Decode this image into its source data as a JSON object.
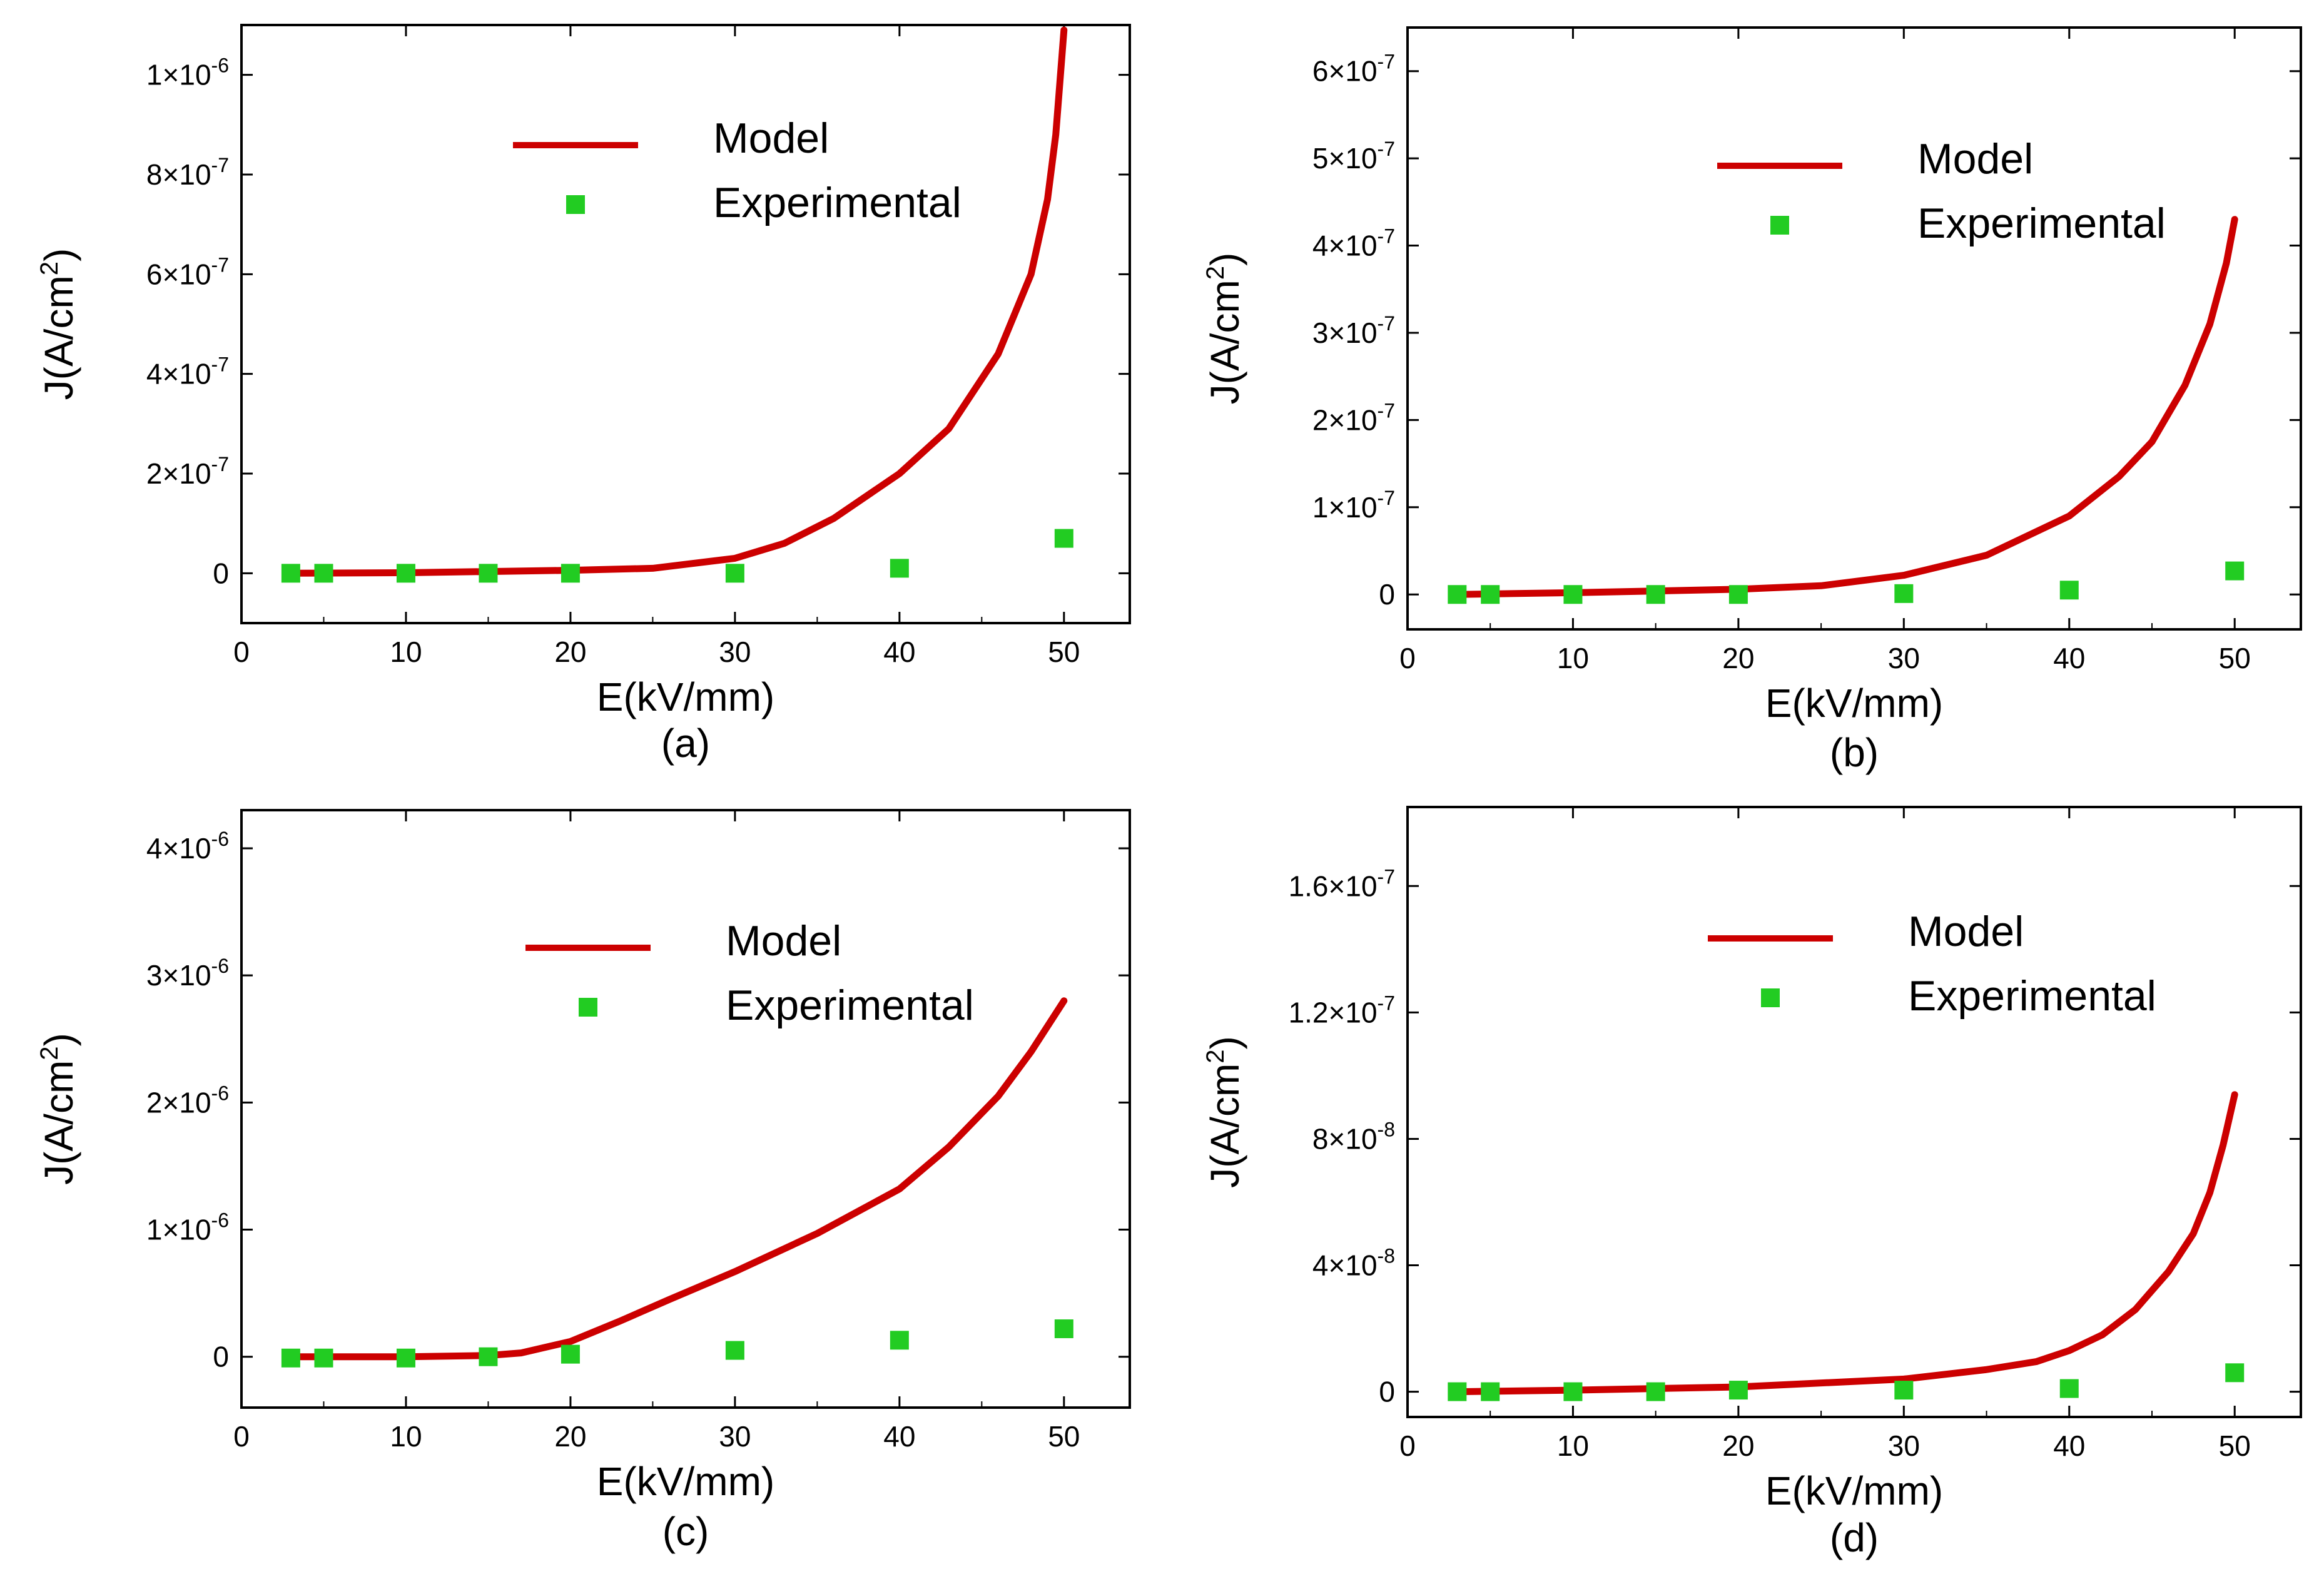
{
  "figure": {
    "series_names": [
      "Model",
      "Experimental"
    ],
    "colors": {
      "model": "#cc0000",
      "experimental": "#22cc22",
      "axis": "#000000"
    }
  },
  "chart_data": [
    {
      "id": "a",
      "type": "line",
      "caption": "(a)",
      "xlabel": "E(kV/mm)",
      "ylabel": "J(A/cm2)",
      "ylabel_parts": [
        "J(A/cm",
        "2",
        ")"
      ],
      "xlim": [
        0,
        54
      ],
      "ylim": [
        -1e-07,
        1.1e-06
      ],
      "x_ticks": [
        0,
        10,
        20,
        30,
        40,
        50
      ],
      "y_ticks": [
        {
          "value": 0,
          "base": "0",
          "exp": ""
        },
        {
          "value": 2e-07,
          "base": "2×10",
          "exp": "-7"
        },
        {
          "value": 4e-07,
          "base": "4×10",
          "exp": "-7"
        },
        {
          "value": 6e-07,
          "base": "6×10",
          "exp": "-7"
        },
        {
          "value": 8e-07,
          "base": "8×10",
          "exp": "-7"
        },
        {
          "value": 1e-06,
          "base": "1×10",
          "exp": "-6"
        }
      ],
      "legend": {
        "position": "top-center",
        "model_label": "Model",
        "experimental_label": "Experimental"
      },
      "series": [
        {
          "name": "Model",
          "kind": "line",
          "x": [
            3,
            10,
            20,
            25,
            30,
            33,
            36,
            40,
            43,
            46,
            48,
            49,
            49.5,
            50
          ],
          "y": [
            0,
            1e-09,
            6e-09,
            1e-08,
            3e-08,
            6e-08,
            1.1e-07,
            2e-07,
            2.9e-07,
            4.4e-07,
            6e-07,
            7.5e-07,
            8.8e-07,
            1.09e-06
          ]
        },
        {
          "name": "Experimental",
          "kind": "scatter",
          "x": [
            3,
            5,
            10,
            15,
            20,
            30,
            40,
            50
          ],
          "y": [
            0,
            0,
            0,
            0,
            0,
            0,
            1e-08,
            7e-08
          ]
        }
      ]
    },
    {
      "id": "b",
      "type": "line",
      "caption": "(b)",
      "xlabel": "E(kV/mm)",
      "ylabel": "J(A/cm2)",
      "ylabel_parts": [
        "J(A/cm",
        "2",
        ")"
      ],
      "xlim": [
        0,
        54
      ],
      "ylim": [
        -4e-08,
        6.5e-07
      ],
      "x_ticks": [
        0,
        10,
        20,
        30,
        40,
        50
      ],
      "y_ticks": [
        {
          "value": 0,
          "base": "0",
          "exp": ""
        },
        {
          "value": 1e-07,
          "base": "1×10",
          "exp": "-7"
        },
        {
          "value": 2e-07,
          "base": "2×10",
          "exp": "-7"
        },
        {
          "value": 3e-07,
          "base": "3×10",
          "exp": "-7"
        },
        {
          "value": 4e-07,
          "base": "4×10",
          "exp": "-7"
        },
        {
          "value": 5e-07,
          "base": "5×10",
          "exp": "-7"
        },
        {
          "value": 6e-07,
          "base": "6×10",
          "exp": "-7"
        }
      ],
      "legend": {
        "position": "top-center",
        "model_label": "Model",
        "experimental_label": "Experimental"
      },
      "series": [
        {
          "name": "Model",
          "kind": "line",
          "x": [
            3,
            10,
            20,
            25,
            30,
            35,
            40,
            43,
            45,
            47,
            48.5,
            49.5,
            50
          ],
          "y": [
            0,
            2e-09,
            6e-09,
            1e-08,
            2.2e-08,
            4.5e-08,
            9e-08,
            1.35e-07,
            1.75e-07,
            2.4e-07,
            3.1e-07,
            3.8e-07,
            4.3e-07
          ]
        },
        {
          "name": "Experimental",
          "kind": "scatter",
          "x": [
            3,
            5,
            10,
            15,
            20,
            30,
            40,
            50
          ],
          "y": [
            0,
            0,
            0,
            0,
            0,
            1e-09,
            5e-09,
            2.7e-08
          ]
        }
      ]
    },
    {
      "id": "c",
      "type": "line",
      "caption": "(c)",
      "xlabel": "E(kV/mm)",
      "ylabel": "J(A/cm2)",
      "ylabel_parts": [
        "J(A/cm",
        "2",
        ")"
      ],
      "xlim": [
        0,
        54
      ],
      "ylim": [
        -4e-07,
        4.3e-06
      ],
      "x_ticks": [
        0,
        10,
        20,
        30,
        40,
        50
      ],
      "y_ticks": [
        {
          "value": 0,
          "base": "0",
          "exp": ""
        },
        {
          "value": 1e-06,
          "base": "1×10",
          "exp": "-6"
        },
        {
          "value": 2e-06,
          "base": "2×10",
          "exp": "-6"
        },
        {
          "value": 3e-06,
          "base": "3×10",
          "exp": "-6"
        },
        {
          "value": 4e-06,
          "base": "4×10",
          "exp": "-6"
        }
      ],
      "legend": {
        "position": "top-center",
        "model_label": "Model",
        "experimental_label": "Experimental"
      },
      "series": [
        {
          "name": "Model",
          "kind": "line",
          "x": [
            3,
            10,
            15,
            17,
            20,
            23,
            26,
            30,
            35,
            40,
            43,
            46,
            48,
            50
          ],
          "y": [
            0,
            0,
            1e-08,
            3e-08,
            1.2e-07,
            2.8e-07,
            4.5e-07,
            6.7e-07,
            9.7e-07,
            1.32e-06,
            1.65e-06,
            2.05e-06,
            2.4e-06,
            2.8e-06
          ]
        },
        {
          "name": "Experimental",
          "kind": "scatter",
          "x": [
            3,
            5,
            10,
            15,
            20,
            30,
            40,
            50
          ],
          "y": [
            -1e-08,
            -1e-08,
            -1e-08,
            0,
            2e-08,
            5e-08,
            1.3e-07,
            2.2e-07
          ]
        }
      ]
    },
    {
      "id": "d",
      "type": "line",
      "caption": "(d)",
      "xlabel": "E(kV/mm)",
      "ylabel": "J(A/cm2)",
      "ylabel_parts": [
        "J(A/cm",
        "2",
        ")"
      ],
      "xlim": [
        0,
        54
      ],
      "ylim": [
        -8e-09,
        1.85e-07
      ],
      "x_ticks": [
        0,
        10,
        20,
        30,
        40,
        50
      ],
      "y_ticks": [
        {
          "value": 0,
          "base": "0",
          "exp": ""
        },
        {
          "value": 4e-08,
          "base": "4×10",
          "exp": "-8"
        },
        {
          "value": 8e-08,
          "base": "8×10",
          "exp": "-8"
        },
        {
          "value": 1.2e-07,
          "base": "1.2×10",
          "exp": "-7"
        },
        {
          "value": 1.6e-07,
          "base": "1.6×10",
          "exp": "-7"
        }
      ],
      "legend": {
        "position": "top-center",
        "model_label": "Model",
        "experimental_label": "Experimental"
      },
      "series": [
        {
          "name": "Model",
          "kind": "line",
          "x": [
            3,
            10,
            20,
            30,
            35,
            38,
            40,
            42,
            44,
            46,
            47.5,
            48.5,
            49.3,
            50
          ],
          "y": [
            0,
            5e-10,
            1.5e-09,
            4e-09,
            7e-09,
            9.5e-09,
            1.3e-08,
            1.8e-08,
            2.6e-08,
            3.8e-08,
            5e-08,
            6.3e-08,
            7.8e-08,
            9.4e-08
          ]
        },
        {
          "name": "Experimental",
          "kind": "scatter",
          "x": [
            3,
            5,
            10,
            15,
            20,
            30,
            40,
            50
          ],
          "y": [
            0,
            0,
            0,
            0,
            5e-10,
            5e-10,
            1e-09,
            6e-09
          ]
        }
      ]
    }
  ]
}
